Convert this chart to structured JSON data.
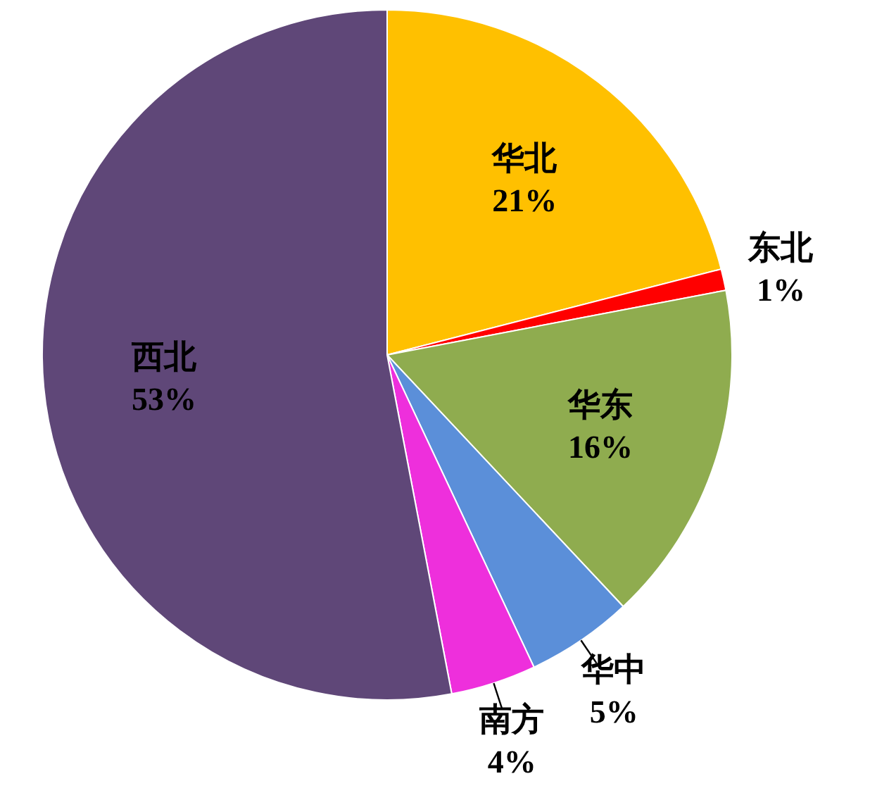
{
  "chart_data": {
    "type": "pie",
    "categories": [
      "华北",
      "东北",
      "华东",
      "华中",
      "南方",
      "西北"
    ],
    "values": [
      21,
      1,
      16,
      5,
      4,
      53
    ],
    "value_labels": [
      "21%",
      "1%",
      "16%",
      "5%",
      "4%",
      "53%"
    ],
    "colors": [
      "#ffc000",
      "#ff0000",
      "#8fac4f",
      "#5b8fd9",
      "#ee2fdc",
      "#5f4778"
    ]
  }
}
